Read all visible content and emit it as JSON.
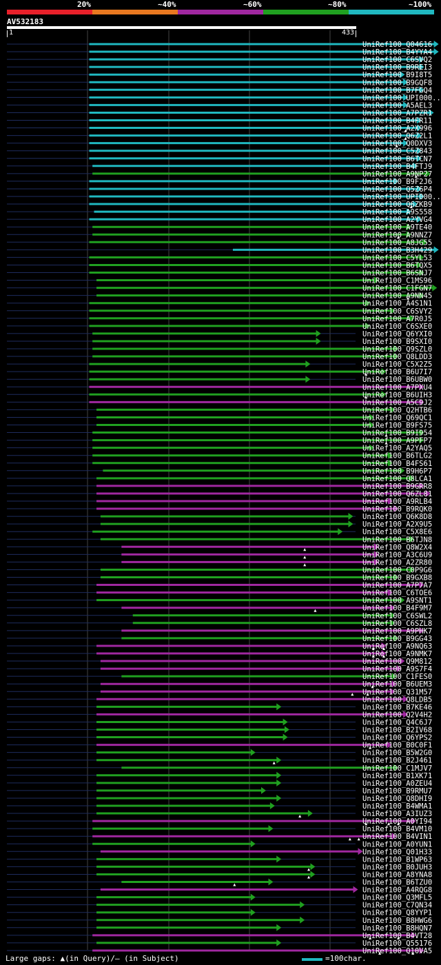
{
  "legend": {
    "labels": [
      "20%",
      "~40%",
      "~60%",
      "~80%",
      "~100%"
    ],
    "colors": [
      "#e8202a",
      "#e87820",
      "#a028a0",
      "#20a020",
      "#20b8c0"
    ]
  },
  "query": {
    "id": "AV532183",
    "start": "1",
    "end": "433"
  },
  "footer": {
    "gaps_text": "Large gaps: ▲(in Query)/– (in Subject)",
    "scale_text": "=100char."
  },
  "chart_data": {
    "type": "alignment",
    "title": "AV532183",
    "query_length": 433,
    "x_range": [
      1,
      433
    ],
    "color_key": {
      "p": "~60%",
      "g": "~80%",
      "c": "~100%"
    },
    "hits": [
      {
        "id": "UniRef100_Q04616",
        "start": 103,
        "end": 536,
        "color": "c",
        "tri": []
      },
      {
        "id": "UniRef100_B4YYA4",
        "start": 103,
        "end": 536,
        "color": "c",
        "tri": []
      },
      {
        "id": "UniRef100_C6SVQ2",
        "start": 103,
        "end": 518,
        "color": "c",
        "tri": []
      },
      {
        "id": "UniRef100_B9REI3",
        "start": 103,
        "end": 518,
        "color": "c",
        "tri": []
      },
      {
        "id": "UniRef100_B9I8T5",
        "start": 103,
        "end": 494,
        "color": "c",
        "tri": []
      },
      {
        "id": "UniRef100_B9GQF8",
        "start": 103,
        "end": 498,
        "color": "c",
        "tri": []
      },
      {
        "id": "UniRef100_B7FGQ4",
        "start": 103,
        "end": 518,
        "color": "c",
        "tri": []
      },
      {
        "id": "UniRef100_UPI000..",
        "start": 103,
        "end": 498,
        "color": "c",
        "tri": []
      },
      {
        "id": "UniRef100_A5AEL3",
        "start": 103,
        "end": 498,
        "color": "c",
        "tri": []
      },
      {
        "id": "UniRef100_A7PZR1",
        "start": 103,
        "end": 530,
        "color": "c",
        "tri": []
      },
      {
        "id": "UniRef100_B4FR11",
        "start": 103,
        "end": 515,
        "color": "c",
        "tri": []
      },
      {
        "id": "UniRef100_A2X996",
        "start": 103,
        "end": 515,
        "color": "c",
        "tri": [
          495
        ]
      },
      {
        "id": "UniRef100_Q6Z2L1",
        "start": 103,
        "end": 515,
        "color": "c",
        "tri": [
          495
        ]
      },
      {
        "id": "UniRef100_Q0DXV3",
        "start": 103,
        "end": 498,
        "color": "c",
        "tri": [
          484
        ]
      },
      {
        "id": "UniRef100_C5Z843",
        "start": 103,
        "end": 515,
        "color": "c",
        "tri": []
      },
      {
        "id": "UniRef100_B6TCN7",
        "start": 103,
        "end": 515,
        "color": "c",
        "tri": []
      },
      {
        "id": "UniRef100_B4FTJ9",
        "start": 107,
        "end": 510,
        "color": "c",
        "tri": []
      },
      {
        "id": "UniRef100_A9NP27",
        "start": 107,
        "end": 526,
        "color": "g",
        "tri": [
          508
        ]
      },
      {
        "id": "UniRef100_B9F2J6",
        "start": 103,
        "end": 486,
        "color": "c",
        "tri": []
      },
      {
        "id": "UniRef100_Q5Z6P4",
        "start": 103,
        "end": 515,
        "color": "c",
        "tri": []
      },
      {
        "id": "UniRef100_UPI000..",
        "start": 103,
        "end": 518,
        "color": "c",
        "tri": []
      },
      {
        "id": "UniRef100_Q6ZKB9",
        "start": 103,
        "end": 510,
        "color": "c",
        "tri": [
          502
        ]
      },
      {
        "id": "UniRef100_A9S558",
        "start": 109,
        "end": 502,
        "color": "c",
        "tri": []
      },
      {
        "id": "UniRef100_A2YVG4",
        "start": 103,
        "end": 515,
        "color": "c",
        "tri": []
      },
      {
        "id": "UniRef100_A9TE40",
        "start": 107,
        "end": 502,
        "color": "g",
        "tri": []
      },
      {
        "id": "UniRef100_A9NNZ7",
        "start": 107,
        "end": 502,
        "color": "g",
        "tri": [
          486
        ]
      },
      {
        "id": "UniRef100_A8JG55",
        "start": 103,
        "end": 522,
        "color": "g",
        "tri": []
      },
      {
        "id": "UniRef100_B3H429",
        "start": 281,
        "end": 536,
        "color": "c",
        "tri": []
      },
      {
        "id": "UniRef100_C5YL53",
        "start": 103,
        "end": 518,
        "color": "g",
        "tri": []
      },
      {
        "id": "UniRef100_B6TQX5",
        "start": 103,
        "end": 515,
        "color": "g",
        "tri": []
      },
      {
        "id": "UniRef100_B6SNJ7",
        "start": 103,
        "end": 518,
        "color": "g",
        "tri": []
      },
      {
        "id": "UniRef100_C1MS96",
        "start": 112,
        "end": 462,
        "color": "g",
        "tri": []
      },
      {
        "id": "UniRef100_C1FGN7",
        "start": 112,
        "end": 534,
        "color": "g",
        "tri": []
      },
      {
        "id": "UniRef100_A9NN45",
        "start": 112,
        "end": 518,
        "color": "g",
        "tri": [
          498
        ]
      },
      {
        "id": "UniRef100_A4S1N1",
        "start": 103,
        "end": 451,
        "color": "g",
        "tri": []
      },
      {
        "id": "UniRef100_C6SVY2",
        "start": 103,
        "end": 482,
        "color": "g",
        "tri": []
      },
      {
        "id": "UniRef100_A7R0J5",
        "start": 103,
        "end": 506,
        "color": "g",
        "tri": []
      },
      {
        "id": "UniRef100_C6SXE0",
        "start": 103,
        "end": 451,
        "color": "g",
        "tri": []
      },
      {
        "id": "UniRef100_Q6YXI0",
        "start": 107,
        "end": 390,
        "color": "g",
        "tri": []
      },
      {
        "id": "UniRef100_B9SXI0",
        "start": 107,
        "end": 390,
        "color": "g",
        "tri": []
      },
      {
        "id": "UniRef100_Q9SZL0",
        "start": 107,
        "end": 486,
        "color": "g",
        "tri": []
      },
      {
        "id": "UniRef100_Q8LDD3",
        "start": 107,
        "end": 486,
        "color": "g",
        "tri": []
      },
      {
        "id": "UniRef100_C5X2Z5",
        "start": 103,
        "end": 377,
        "color": "g",
        "tri": []
      },
      {
        "id": "UniRef100_B6U7I7",
        "start": 103,
        "end": 471,
        "color": "g",
        "tri": [
          446
        ]
      },
      {
        "id": "UniRef100_B6UBW0",
        "start": 103,
        "end": 377,
        "color": "g",
        "tri": []
      },
      {
        "id": "UniRef100_A7PXU4",
        "start": 103,
        "end": 518,
        "color": "p",
        "tri": []
      },
      {
        "id": "UniRef100_B6UIH3",
        "start": 103,
        "end": 471,
        "color": "g",
        "tri": [
          446
        ]
      },
      {
        "id": "UniRef100_A5C9J2",
        "start": 103,
        "end": 518,
        "color": "p",
        "tri": []
      },
      {
        "id": "UniRef100_Q2HTB6",
        "start": 112,
        "end": 482,
        "color": "g",
        "tri": []
      },
      {
        "id": "UniRef100_Q69QC1",
        "start": 112,
        "end": 456,
        "color": "g",
        "tri": []
      },
      {
        "id": "UniRef100_B9FS75",
        "start": 112,
        "end": 456,
        "color": "g",
        "tri": []
      },
      {
        "id": "UniRef100_B9I954",
        "start": 107,
        "end": 518,
        "color": "g",
        "tri": [
          471
        ]
      },
      {
        "id": "UniRef100_A9PFP7",
        "start": 107,
        "end": 518,
        "color": "g",
        "tri": [
          471
        ]
      },
      {
        "id": "UniRef100_A2YAQ5",
        "start": 107,
        "end": 456,
        "color": "g",
        "tri": []
      },
      {
        "id": "UniRef100_B6TLG2",
        "start": 107,
        "end": 479,
        "color": "g",
        "tri": []
      },
      {
        "id": "UniRef100_B4FS61",
        "start": 107,
        "end": 479,
        "color": "g",
        "tri": []
      },
      {
        "id": "UniRef100_B9H6P7",
        "start": 120,
        "end": 494,
        "color": "g",
        "tri": []
      },
      {
        "id": "UniRef100_Q8LCA1",
        "start": 112,
        "end": 506,
        "color": "g",
        "tri": []
      },
      {
        "id": "UniRef100_B9GRR8",
        "start": 112,
        "end": 518,
        "color": "p",
        "tri": []
      },
      {
        "id": "UniRef100_Q6ZL81",
        "start": 112,
        "end": 526,
        "color": "p",
        "tri": []
      },
      {
        "id": "UniRef100_A9RLB4",
        "start": 112,
        "end": 479,
        "color": "p",
        "tri": []
      },
      {
        "id": "UniRef100_B9RQK0",
        "start": 112,
        "end": 486,
        "color": "p",
        "tri": []
      },
      {
        "id": "UniRef100_Q6K8D8",
        "start": 117,
        "end": 430,
        "color": "g",
        "tri": []
      },
      {
        "id": "UniRef100_A2X9U5",
        "start": 117,
        "end": 430,
        "color": "g",
        "tri": []
      },
      {
        "id": "UniRef100_C5X8E6",
        "start": 107,
        "end": 417,
        "color": "g",
        "tri": []
      },
      {
        "id": "UniRef100_B6TJN8",
        "start": 117,
        "end": 506,
        "color": "g",
        "tri": []
      },
      {
        "id": "UniRef100_Q8W2X4",
        "start": 143,
        "end": 462,
        "color": "p",
        "tri": [
          370
        ]
      },
      {
        "id": "UniRef100_A3C6U9",
        "start": 143,
        "end": 462,
        "color": "p",
        "tri": [
          370
        ]
      },
      {
        "id": "UniRef100_A2ZR80",
        "start": 143,
        "end": 462,
        "color": "p",
        "tri": [
          370
        ]
      },
      {
        "id": "UniRef100_C0P9G6",
        "start": 117,
        "end": 506,
        "color": "g",
        "tri": []
      },
      {
        "id": "UniRef100_B9GXB8",
        "start": 117,
        "end": 486,
        "color": "g",
        "tri": []
      },
      {
        "id": "UniRef100_A7P7A7",
        "start": 112,
        "end": 518,
        "color": "p",
        "tri": []
      },
      {
        "id": "UniRef100_C6TOE6",
        "start": 112,
        "end": 479,
        "color": "p",
        "tri": []
      },
      {
        "id": "UniRef100_A9SNT1",
        "start": 112,
        "end": 494,
        "color": "g",
        "tri": []
      },
      {
        "id": "UniRef100_B4F9M7",
        "start": 143,
        "end": 482,
        "color": "p",
        "tri": [
          383
        ]
      },
      {
        "id": "UniRef100_C6SWL2",
        "start": 157,
        "end": 482,
        "color": "g",
        "tri": []
      },
      {
        "id": "UniRef100_C6SZL8",
        "start": 157,
        "end": 482,
        "color": "g",
        "tri": []
      },
      {
        "id": "UniRef100_A9PHK7",
        "start": 143,
        "end": 518,
        "color": "p",
        "tri": []
      },
      {
        "id": "UniRef100_B9GG43",
        "start": 143,
        "end": 486,
        "color": "g",
        "tri": []
      },
      {
        "id": "UniRef100_A9NQ63",
        "start": 112,
        "end": 471,
        "color": "p",
        "tri": [
          455,
          468
        ]
      },
      {
        "id": "UniRef100_A9NMK7",
        "start": 112,
        "end": 471,
        "color": "p",
        "tri": [
          455,
          468
        ]
      },
      {
        "id": "UniRef100_Q9M812",
        "start": 117,
        "end": 494,
        "color": "p",
        "tri": []
      },
      {
        "id": "UniRef100_A9S7F4",
        "start": 117,
        "end": 490,
        "color": "p",
        "tri": []
      },
      {
        "id": "UniRef100_C1FES0",
        "start": 143,
        "end": 484,
        "color": "g",
        "tri": []
      },
      {
        "id": "UniRef100_B6UEM3",
        "start": 117,
        "end": 484,
        "color": "p",
        "tri": [
          454
        ]
      },
      {
        "id": "UniRef100_Q31M57",
        "start": 117,
        "end": 482,
        "color": "p",
        "tri": [
          429,
          448
        ]
      },
      {
        "id": "UniRef100_Q8LDB5",
        "start": 112,
        "end": 498,
        "color": "p",
        "tri": []
      },
      {
        "id": "UniRef100_B7KE46",
        "start": 112,
        "end": 341,
        "color": "g",
        "tri": []
      },
      {
        "id": "UniRef100_Q2V4H2",
        "start": 112,
        "end": 498,
        "color": "p",
        "tri": []
      },
      {
        "id": "UniRef100_Q4C6J7",
        "start": 112,
        "end": 349,
        "color": "g",
        "tri": []
      },
      {
        "id": "UniRef100_B2IV68",
        "start": 112,
        "end": 351,
        "color": "g",
        "tri": []
      },
      {
        "id": "UniRef100_Q6YPS2",
        "start": 112,
        "end": 349,
        "color": "g",
        "tri": []
      },
      {
        "id": "UniRef100_B0C0F1",
        "start": 112,
        "end": 478,
        "color": "p",
        "tri": [
          451
        ]
      },
      {
        "id": "UniRef100_B5W2G0",
        "start": 112,
        "end": 309,
        "color": "g",
        "tri": []
      },
      {
        "id": "UniRef100_B2J461",
        "start": 112,
        "end": 341,
        "color": "g",
        "tri": [
          332
        ]
      },
      {
        "id": "UniRef100_C1MJV7",
        "start": 143,
        "end": 486,
        "color": "g",
        "tri": []
      },
      {
        "id": "UniRef100_B1XK71",
        "start": 112,
        "end": 341,
        "color": "g",
        "tri": []
      },
      {
        "id": "UniRef100_A0ZEU4",
        "start": 112,
        "end": 341,
        "color": "g",
        "tri": []
      },
      {
        "id": "UniRef100_B9RMU7",
        "start": 112,
        "end": 322,
        "color": "g",
        "tri": []
      },
      {
        "id": "UniRef100_Q8DHI9",
        "start": 112,
        "end": 341,
        "color": "g",
        "tri": []
      },
      {
        "id": "UniRef100_B4WMA1",
        "start": 112,
        "end": 333,
        "color": "g",
        "tri": []
      },
      {
        "id": "UniRef100_A3IUZ3",
        "start": 112,
        "end": 380,
        "color": "g",
        "tri": [
          364
        ]
      },
      {
        "id": "UniRef100_A0YI94",
        "start": 107,
        "end": 508,
        "color": "p",
        "tri": [
          446,
          474,
          486
        ]
      },
      {
        "id": "UniRef100_B4VM10",
        "start": 107,
        "end": 331,
        "color": "g",
        "tri": []
      },
      {
        "id": "UniRef100_B4VIN1",
        "start": 107,
        "end": 484,
        "color": "p",
        "tri": [
          426,
          437
        ]
      },
      {
        "id": "UniRef100_A0YUN1",
        "start": 107,
        "end": 309,
        "color": "g",
        "tri": []
      },
      {
        "id": "UniRef100_Q01H33",
        "start": 117,
        "end": 442,
        "color": "p",
        "tri": []
      },
      {
        "id": "UniRef100_B1WP63",
        "start": 112,
        "end": 341,
        "color": "g",
        "tri": []
      },
      {
        "id": "UniRef100_B0JUH3",
        "start": 112,
        "end": 383,
        "color": "g",
        "tri": [
          375
        ]
      },
      {
        "id": "UniRef100_A8YNA8",
        "start": 112,
        "end": 383,
        "color": "g",
        "tri": [
          375
        ]
      },
      {
        "id": "UniRef100_B6TZU0",
        "start": 143,
        "end": 331,
        "color": "g",
        "tri": [
          283
        ]
      },
      {
        "id": "UniRef100_A4RQG8",
        "start": 117,
        "end": 436,
        "color": "p",
        "tri": []
      },
      {
        "id": "UniRef100_Q3MFL5",
        "start": 112,
        "end": 309,
        "color": "g",
        "tri": []
      },
      {
        "id": "UniRef100_C7QN34",
        "start": 112,
        "end": 370,
        "color": "g",
        "tri": []
      },
      {
        "id": "UniRef100_Q8YYP1",
        "start": 112,
        "end": 309,
        "color": "g",
        "tri": []
      },
      {
        "id": "UniRef100_B8HWG6",
        "start": 112,
        "end": 370,
        "color": "g",
        "tri": []
      },
      {
        "id": "UniRef100_B8HQN7",
        "start": 112,
        "end": 341,
        "color": "g",
        "tri": []
      },
      {
        "id": "UniRef100_B4VT28",
        "start": 107,
        "end": 508,
        "color": "p",
        "tri": [
          451,
          486
        ]
      },
      {
        "id": "UniRef100_Q55176",
        "start": 112,
        "end": 341,
        "color": "g",
        "tri": []
      },
      {
        "id": "UniRef100_Q10VA5",
        "start": 107,
        "end": 518,
        "color": "p",
        "tri": [
          463,
          504
        ]
      }
    ]
  }
}
